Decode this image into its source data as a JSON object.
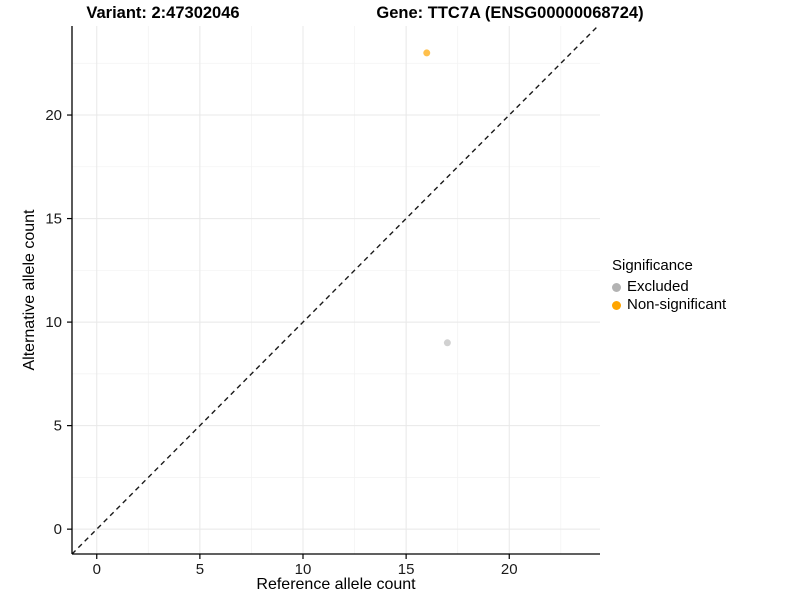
{
  "titles": {
    "variant": "Variant: 2:47302046",
    "gene": "Gene: TTC7A (ENSG00000068724)"
  },
  "legend": {
    "title": "Significance",
    "items": [
      {
        "label": "Excluded",
        "color": "#b3b3b3"
      },
      {
        "label": "Non-significant",
        "color": "#ffa500"
      }
    ]
  },
  "chart_data": {
    "type": "scatter",
    "xlabel": "Reference allele count",
    "ylabel": "Alternative allele count",
    "xlim": [
      -1.2,
      24.4
    ],
    "ylim": [
      -1.2,
      24.3
    ],
    "x_ticks": [
      0,
      5,
      10,
      15,
      20
    ],
    "y_ticks": [
      0,
      5,
      10,
      15,
      20
    ],
    "x_minor_ticks": [
      2.5,
      7.5,
      12.5,
      17.5,
      22.5
    ],
    "y_minor_ticks": [
      2.5,
      7.5,
      12.5,
      17.5,
      22.5
    ],
    "series": [
      {
        "name": "Excluded",
        "color": "#bebebe",
        "points": [
          [
            17,
            9
          ]
        ]
      },
      {
        "name": "Non-significant",
        "color": "#ffa500",
        "points": [
          [
            16,
            23
          ]
        ]
      }
    ],
    "reference_line": {
      "type": "identity",
      "style": "dashed",
      "color": "#1a1a1a"
    },
    "grid": true,
    "legend_position": "right",
    "colors": {
      "grid_major": "#e8e8e8",
      "grid_minor": "#f2f2f2",
      "axis_line": "#000000",
      "tick_label": "#1a1a1a",
      "point_opacity": 0.7
    }
  }
}
